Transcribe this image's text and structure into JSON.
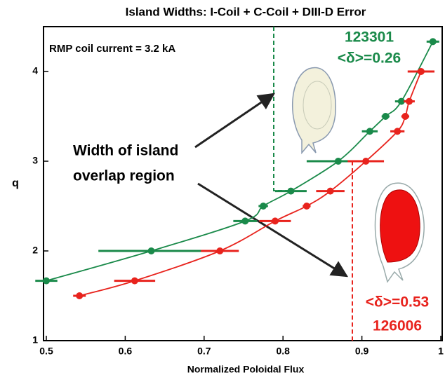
{
  "chart_data": {
    "type": "scatter",
    "title": "Island Widths:  I-Coil + C-Coil + DIII-D Error",
    "x_label": "Normalized Poloidal Flux",
    "y_label": "q",
    "note": "RMP coil current = 3.2 kA",
    "overlap_label": [
      "Width of island",
      "overlap region"
    ],
    "xlim": [
      0.5,
      1.0
    ],
    "xticks": [
      0.5,
      0.6,
      0.7,
      0.8,
      0.9,
      1
    ],
    "ylim": [
      1,
      4.5
    ],
    "yticks": [
      1,
      2,
      3,
      4
    ],
    "series": [
      {
        "name": "123301",
        "shape_label": "<δ>=0.26",
        "color": "#1a8a4a",
        "x": [
          0.5,
          0.633,
          0.752,
          0.775,
          0.81,
          0.87,
          0.91,
          0.93,
          0.95,
          0.99
        ],
        "values": [
          1.667,
          2.0,
          2.333,
          2.5,
          2.667,
          3.0,
          3.333,
          3.5,
          3.667,
          4.333
        ],
        "xerr": [
          0.014,
          0.067,
          0.015,
          0.006,
          0.02,
          0.04,
          0.01,
          0.005,
          0.008,
          0.008
        ]
      },
      {
        "name": "126006",
        "shape_label": "<δ>=0.53",
        "color": "#e8231d",
        "x": [
          0.542,
          0.612,
          0.72,
          0.79,
          0.83,
          0.86,
          0.905,
          0.945,
          0.955,
          0.96,
          0.975
        ],
        "values": [
          1.5,
          1.667,
          2.0,
          2.333,
          2.5,
          2.667,
          3.0,
          3.333,
          3.5,
          3.667,
          4.0
        ],
        "xerr": [
          0.008,
          0.026,
          0.024,
          0.02,
          0.005,
          0.018,
          0.023,
          0.009,
          0.005,
          0.007,
          0.017
        ]
      }
    ]
  }
}
